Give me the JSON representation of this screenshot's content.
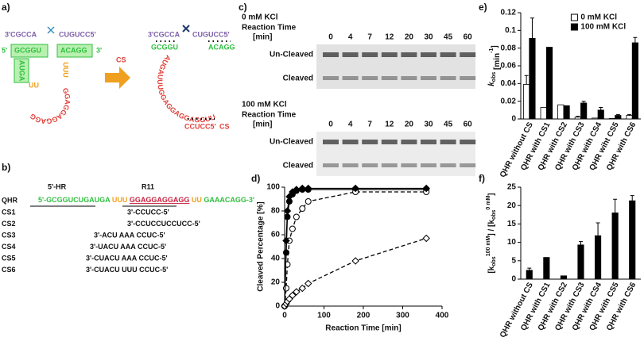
{
  "panel_a": {
    "label": "a)",
    "left": {
      "strand_3": "3'CGCCA",
      "strand_5": "CUGUCC5'",
      "end_5": "5'",
      "stem_left": "GCGGU",
      "stem_right": "ACAGG",
      "end_3": "3'",
      "bulge": "AUGA",
      "linker": "UUU",
      "loop": "GGAGGAGGAGG",
      "linker2": "UU"
    },
    "arrow_label": "CS",
    "right": {
      "strand_3": "3'CGCCA",
      "strand_5": "CUGUCC5'",
      "stem_left": "GCGGU",
      "stem_right": "ACAGG",
      "loop": "AUGAUUUGGAGGAGGAGGUU",
      "cs_strand": "CCUCC5'",
      "cs_label": "CS"
    }
  },
  "panel_b": {
    "label": "b)",
    "region_1": "5'-HR",
    "region_2": "R11",
    "qhr": {
      "name": "QHR",
      "parts": [
        "5'-GCGGUCUGAUGA",
        " UUU ",
        "GGAGGAGGAGG",
        " UU ",
        "GAAACAGG-3'"
      ]
    },
    "rows": [
      [
        "CS1",
        "3'-CCUCC-5'"
      ],
      [
        "CS2",
        "3'-CCUCCUCCUCC-5'"
      ],
      [
        "CS3",
        "3'-ACU AAA CCUC-5'"
      ],
      [
        "CS4",
        "3'-UACU AAA CCUC-5'"
      ],
      [
        "CS5",
        "3'-CUACU AAA CCUC-5'"
      ],
      [
        "CS6",
        "3'-CUACU UUU CCUC-5'"
      ]
    ]
  },
  "panel_c": {
    "label": "c)",
    "gels": [
      {
        "title": "0 mM KCl",
        "time_label": "Reaction Time",
        "unit": "[min]",
        "lanes": [
          "0",
          "4",
          "7",
          "12",
          "20",
          "30",
          "45",
          "60"
        ],
        "band_top": "Un-Cleaved",
        "band_bottom": "Cleaved"
      },
      {
        "title": "100 mM KCl",
        "time_label": "Reaction Time",
        "unit": "[min]",
        "lanes": [
          "0",
          "4",
          "7",
          "12",
          "20",
          "30",
          "45",
          "60"
        ],
        "band_top": "Un-Cleaved",
        "band_bottom": "Cleaved"
      }
    ]
  },
  "chart_data": [
    {
      "type": "line",
      "label": "d)",
      "x_label": "Reaction Time [min]",
      "y_label": "Cleaved Percentage [%]",
      "x": [
        0,
        4,
        7,
        12,
        20,
        30,
        45,
        60,
        180,
        360
      ],
      "xlim": [
        0,
        400
      ],
      "xticks": [
        0,
        100,
        200,
        300,
        400
      ],
      "ylim": [
        0,
        100
      ],
      "yticks": [
        0,
        20,
        40,
        60,
        80,
        100
      ],
      "series": [
        {
          "color": "#000000",
          "marker": "circle",
          "filled": true,
          "dashed": false,
          "values": [
            0,
            45,
            75,
            88,
            94,
            97,
            98,
            98,
            98,
            98
          ]
        },
        {
          "color": "#000000",
          "marker": "circle",
          "filled": false,
          "dashed": true,
          "values": [
            0,
            15,
            35,
            55,
            65,
            75,
            82,
            88,
            96,
            96
          ]
        },
        {
          "color": "#000000",
          "marker": "diamond",
          "filled": true,
          "dashed": false,
          "values": [
            0,
            55,
            80,
            92,
            96,
            98,
            99,
            99,
            99,
            99
          ]
        },
        {
          "color": "#000000",
          "marker": "diamond",
          "filled": false,
          "dashed": true,
          "values": [
            0,
            2,
            4,
            6,
            9,
            12,
            15,
            19,
            38,
            57
          ]
        }
      ]
    },
    {
      "type": "bar",
      "label": "e)",
      "y_label_parts": [
        "k",
        "obs",
        " [min",
        "-1",
        "]"
      ],
      "categories": [
        "QHR without CS",
        "QHR with CS1",
        "QHR with CS2",
        "QHR with CS3",
        "QHR with CS4",
        "QHR wiht CS5",
        "QHR with CS6"
      ],
      "ylim": [
        0,
        0.12
      ],
      "yticks": [
        0,
        0.02,
        0.04,
        0.06,
        0.08,
        0.1,
        0.12
      ],
      "legend": "upper right",
      "series": [
        {
          "name": "0 mM KCl",
          "color": "#ffffff",
          "values": [
            0.039,
            0.013,
            0.016,
            0.002,
            0.001,
            0.0005,
            0.004
          ],
          "errors": [
            0.01,
            0,
            0,
            0.001,
            0,
            0,
            0.001
          ]
        },
        {
          "name": "100 mM KCl",
          "color": "#000000",
          "values": [
            0.091,
            0.081,
            0.015,
            0.018,
            0.01,
            0.004,
            0.086
          ],
          "errors": [
            0.023,
            0,
            0,
            0.002,
            0.003,
            0.001,
            0.006
          ]
        }
      ]
    },
    {
      "type": "bar",
      "label": "f)",
      "y_label_parts": [
        "[k",
        "obs",
        "100 mM",
        "] / [k",
        "obs",
        "0 mM",
        "]"
      ],
      "categories": [
        "QHR without CS",
        "QHR with CS1",
        "QHR with CS2",
        "QHR with CS3",
        "QHR with CS4",
        "QHR with CS5",
        "QHR with CS6"
      ],
      "ylim": [
        0,
        25
      ],
      "yticks": [
        0,
        5,
        10,
        15,
        20,
        25
      ],
      "series": [
        {
          "color": "#000000",
          "values": [
            2.4,
            5.9,
            0.9,
            9.3,
            11.8,
            18,
            21.3
          ],
          "errors": [
            0.6,
            0,
            0,
            0.9,
            3.5,
            3.7,
            1.4
          ]
        }
      ]
    }
  ]
}
